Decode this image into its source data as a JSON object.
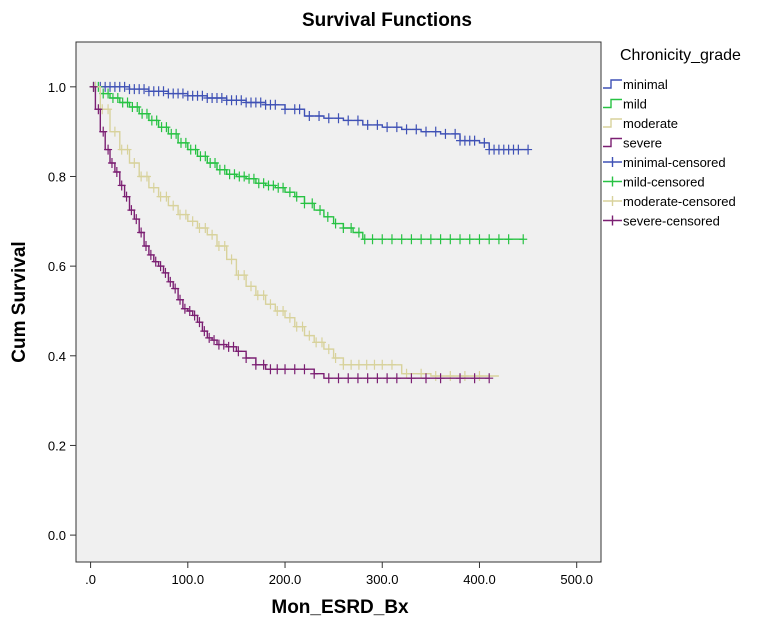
{
  "chart_data": {
    "type": "line",
    "title": "Survival Functions",
    "xlabel": "Mon_ESRD_Bx",
    "ylabel": "Cum Survival",
    "xlim": [
      -15,
      525
    ],
    "ylim": [
      -0.06,
      1.1
    ],
    "x_ticks": [
      0,
      100,
      200,
      300,
      400,
      500
    ],
    "x_tick_labels": [
      ".0",
      "100.0",
      "200.0",
      "300.0",
      "400.0",
      "500.0"
    ],
    "y_ticks": [
      0,
      0.2,
      0.4,
      0.6,
      0.8,
      1.0
    ],
    "y_tick_labels": [
      "0.0",
      "0.2",
      "0.4",
      "0.6",
      "0.8",
      "1.0"
    ],
    "grid": false,
    "legend_title": "Chronicity_grade",
    "legend_position": "right",
    "legend": [
      {
        "label": "minimal",
        "color": "#3f51b5",
        "kind": "line"
      },
      {
        "label": "mild",
        "color": "#27c243",
        "kind": "line"
      },
      {
        "label": "moderate",
        "color": "#d8d29c",
        "kind": "line"
      },
      {
        "label": "severe",
        "color": "#7b1f72",
        "kind": "line"
      },
      {
        "label": "minimal-censored",
        "color": "#3f51b5",
        "kind": "censor"
      },
      {
        "label": "mild-censored",
        "color": "#27c243",
        "kind": "censor"
      },
      {
        "label": "moderate-censored",
        "color": "#d8d29c",
        "kind": "censor"
      },
      {
        "label": "severe-censored",
        "color": "#7b1f72",
        "kind": "censor"
      }
    ],
    "series": [
      {
        "name": "minimal",
        "color": "#3f51b5",
        "x": [
          0,
          20,
          40,
          60,
          80,
          100,
          120,
          140,
          160,
          180,
          200,
          220,
          240,
          260,
          280,
          300,
          320,
          340,
          360,
          380,
          400,
          410,
          450
        ],
        "y": [
          1.0,
          1.0,
          0.995,
          0.99,
          0.985,
          0.98,
          0.975,
          0.97,
          0.965,
          0.96,
          0.95,
          0.935,
          0.93,
          0.925,
          0.915,
          0.91,
          0.905,
          0.9,
          0.895,
          0.88,
          0.875,
          0.86,
          0.86
        ],
        "censored_x": [
          5,
          10,
          15,
          20,
          25,
          30,
          35,
          40,
          45,
          50,
          55,
          60,
          65,
          70,
          75,
          80,
          85,
          90,
          95,
          100,
          105,
          110,
          115,
          120,
          125,
          130,
          135,
          140,
          145,
          150,
          155,
          160,
          165,
          170,
          175,
          180,
          185,
          190,
          200,
          210,
          215,
          225,
          235,
          245,
          255,
          265,
          275,
          285,
          295,
          305,
          315,
          325,
          335,
          345,
          355,
          365,
          375,
          380,
          385,
          390,
          395,
          405,
          410,
          415,
          420,
          425,
          430,
          435,
          440,
          450
        ]
      },
      {
        "name": "mild",
        "color": "#27c243",
        "x": [
          0,
          10,
          20,
          30,
          40,
          50,
          60,
          70,
          80,
          90,
          100,
          110,
          120,
          130,
          140,
          150,
          160,
          170,
          180,
          190,
          200,
          210,
          220,
          230,
          240,
          250,
          260,
          270,
          280,
          300,
          350,
          400,
          445
        ],
        "y": [
          1.0,
          0.985,
          0.975,
          0.965,
          0.955,
          0.94,
          0.925,
          0.91,
          0.895,
          0.875,
          0.86,
          0.845,
          0.83,
          0.815,
          0.805,
          0.8,
          0.795,
          0.785,
          0.78,
          0.775,
          0.765,
          0.755,
          0.74,
          0.725,
          0.71,
          0.695,
          0.685,
          0.675,
          0.66,
          0.66,
          0.66,
          0.66,
          0.66
        ],
        "censored_x": [
          3,
          8,
          13,
          18,
          23,
          28,
          33,
          38,
          43,
          48,
          53,
          58,
          63,
          68,
          73,
          78,
          83,
          88,
          93,
          98,
          103,
          108,
          113,
          118,
          123,
          128,
          133,
          138,
          143,
          148,
          153,
          158,
          163,
          168,
          173,
          178,
          183,
          188,
          193,
          198,
          205,
          212,
          220,
          228,
          236,
          244,
          252,
          260,
          268,
          276,
          282,
          290,
          300,
          310,
          320,
          330,
          340,
          350,
          360,
          370,
          380,
          390,
          400,
          410,
          420,
          430,
          445
        ]
      },
      {
        "name": "moderate",
        "color": "#d8d29c",
        "x": [
          0,
          10,
          20,
          30,
          40,
          50,
          60,
          70,
          80,
          90,
          100,
          110,
          120,
          130,
          140,
          150,
          160,
          170,
          180,
          190,
          200,
          210,
          220,
          230,
          240,
          250,
          260,
          270,
          300,
          320,
          350,
          400,
          420
        ],
        "y": [
          1.0,
          0.95,
          0.9,
          0.86,
          0.83,
          0.8,
          0.775,
          0.755,
          0.735,
          0.715,
          0.7,
          0.685,
          0.67,
          0.645,
          0.615,
          0.58,
          0.555,
          0.535,
          0.515,
          0.5,
          0.485,
          0.465,
          0.445,
          0.43,
          0.415,
          0.395,
          0.38,
          0.38,
          0.38,
          0.36,
          0.355,
          0.355,
          0.355
        ],
        "censored_x": [
          5,
          12,
          18,
          25,
          32,
          38,
          45,
          52,
          58,
          65,
          72,
          78,
          85,
          92,
          98,
          105,
          112,
          118,
          125,
          132,
          138,
          145,
          152,
          158,
          165,
          172,
          178,
          185,
          192,
          198,
          205,
          212,
          218,
          225,
          232,
          238,
          245,
          252,
          260,
          268,
          276,
          284,
          292,
          300,
          310,
          325,
          340,
          355,
          370,
          385,
          400
        ]
      },
      {
        "name": "severe",
        "color": "#7b1f72",
        "x": [
          0,
          5,
          10,
          15,
          20,
          25,
          30,
          35,
          40,
          45,
          50,
          55,
          60,
          65,
          70,
          75,
          80,
          85,
          90,
          95,
          100,
          105,
          110,
          115,
          120,
          125,
          130,
          140,
          150,
          160,
          170,
          180,
          200,
          230,
          240,
          300,
          350,
          410
        ],
        "y": [
          1.0,
          0.95,
          0.9,
          0.86,
          0.83,
          0.81,
          0.78,
          0.755,
          0.725,
          0.705,
          0.675,
          0.645,
          0.625,
          0.61,
          0.6,
          0.585,
          0.565,
          0.55,
          0.525,
          0.505,
          0.5,
          0.49,
          0.475,
          0.455,
          0.44,
          0.435,
          0.425,
          0.42,
          0.41,
          0.395,
          0.38,
          0.37,
          0.37,
          0.36,
          0.35,
          0.35,
          0.35,
          0.35
        ],
        "censored_x": [
          3,
          8,
          13,
          18,
          22,
          27,
          32,
          37,
          42,
          47,
          52,
          57,
          62,
          67,
          72,
          77,
          82,
          87,
          92,
          97,
          102,
          107,
          112,
          117,
          122,
          127,
          132,
          137,
          142,
          147,
          152,
          160,
          170,
          178,
          185,
          192,
          200,
          210,
          220,
          230,
          245,
          255,
          265,
          275,
          285,
          295,
          305,
          315,
          330,
          345,
          360,
          380,
          395,
          410
        ]
      }
    ]
  }
}
